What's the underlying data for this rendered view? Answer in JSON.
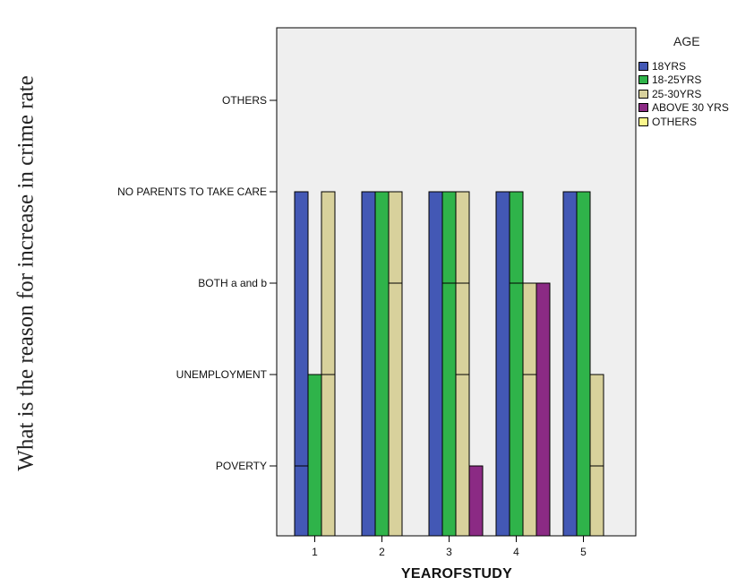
{
  "chart_data": {
    "type": "bar",
    "title": "",
    "xlabel": "YEAROFSTUDY",
    "ylabel": "What is the reason for increase in crime rate",
    "categories": [
      "1",
      "2",
      "3",
      "4",
      "5"
    ],
    "y_categories": [
      "POVERTY",
      "UNEMPLOYMENT",
      "BOTH a and b",
      "NO PARENTS TO TAKE CARE",
      "OTHERS"
    ],
    "legend_title": "AGE",
    "legend_position": "top-right",
    "grid": false,
    "series": [
      {
        "name": "18YRS",
        "color": "#4358b5",
        "values": [
          4,
          4,
          4,
          4,
          4
        ],
        "segments": [
          [
            1,
            4
          ],
          [
            4
          ],
          [
            4
          ],
          [
            4
          ],
          [
            4
          ]
        ]
      },
      {
        "name": "18-25YRS",
        "color": "#2fb34a",
        "values": [
          2,
          4,
          4,
          4,
          4
        ],
        "segments": [
          [
            2
          ],
          [
            4
          ],
          [
            3,
            4
          ],
          [
            3,
            4
          ],
          [
            4
          ]
        ]
      },
      {
        "name": "25-30YRS",
        "color": "#d8d19c",
        "values": [
          4,
          4,
          4,
          3,
          2
        ],
        "segments": [
          [
            2,
            4
          ],
          [
            3,
            4
          ],
          [
            2,
            3,
            4
          ],
          [
            2,
            3
          ],
          [
            1,
            2
          ]
        ]
      },
      {
        "name": "ABOVE 30 YRS",
        "color": "#8b2a84",
        "values": [
          null,
          null,
          1,
          3,
          null
        ],
        "segments": [
          [],
          [],
          [
            1
          ],
          [
            3
          ],
          []
        ]
      },
      {
        "name": "OTHERS",
        "color": "#fbf68c",
        "values": [
          null,
          null,
          null,
          null,
          null
        ],
        "segments": [
          [],
          [],
          [],
          [],
          []
        ]
      }
    ]
  }
}
